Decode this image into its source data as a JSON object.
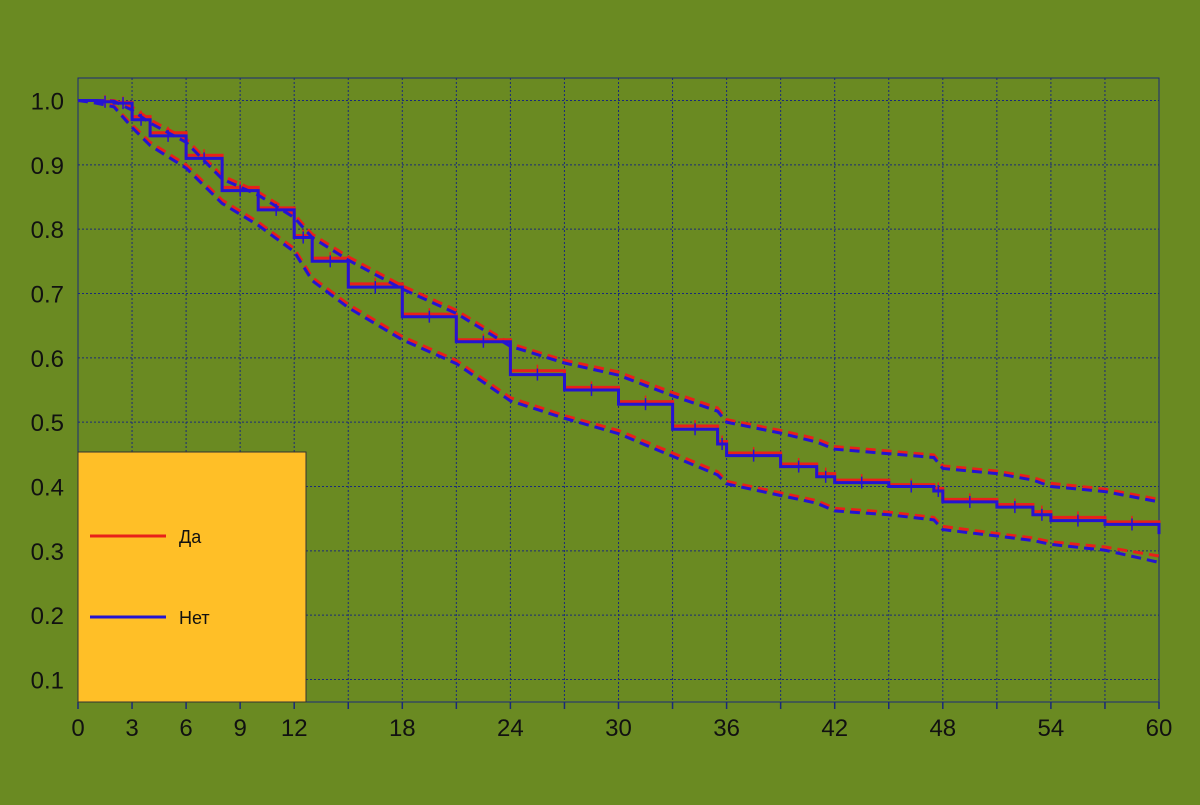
{
  "chart_data": {
    "type": "line",
    "title": "",
    "xlabel": "",
    "ylabel": "",
    "xlim": [
      0,
      60
    ],
    "ylim": [
      0.065,
      1.035
    ],
    "x_tick_labels": [
      0,
      3,
      6,
      9,
      12,
      18,
      24,
      30,
      36,
      42,
      48,
      54,
      60
    ],
    "x_minor_ticks": [
      15,
      21,
      27,
      33,
      39,
      45,
      51,
      57
    ],
    "x_grid": [
      3,
      6,
      9,
      12,
      15,
      18,
      21,
      24,
      27,
      30,
      33,
      36,
      39,
      42,
      45,
      48,
      51,
      54,
      57
    ],
    "y_tick_labels": [
      0.1,
      0.2,
      0.3,
      0.4,
      0.5,
      0.6,
      0.7,
      0.8,
      0.9,
      1.0
    ],
    "grid": true,
    "legend_position": "bottom-left",
    "colors": {
      "background": "#6a8a22",
      "grid": "#1a2a7a",
      "axis": "#1a2a7a",
      "legend_bg": "#ffbf27",
      "tick_text": "#111111"
    },
    "series": [
      {
        "name": "Да",
        "color": "#e8201a",
        "x": [
          0,
          1,
          2,
          3,
          4,
          6,
          8,
          10,
          12,
          13,
          15,
          18,
          21,
          24,
          27,
          30,
          33,
          35.5,
          36,
          39,
          41,
          42,
          45,
          47.5,
          48,
          51,
          53,
          54,
          57,
          60
        ],
        "y": [
          1.0,
          0.999,
          0.997,
          0.975,
          0.95,
          0.915,
          0.865,
          0.833,
          0.79,
          0.755,
          0.715,
          0.668,
          0.628,
          0.58,
          0.554,
          0.532,
          0.494,
          0.47,
          0.452,
          0.435,
          0.42,
          0.41,
          0.403,
          0.397,
          0.38,
          0.372,
          0.361,
          0.352,
          0.345,
          0.332
        ],
        "ci_upper": [
          1.0,
          1.0,
          1.0,
          0.99,
          0.97,
          0.94,
          0.883,
          0.858,
          0.823,
          0.792,
          0.757,
          0.712,
          0.674,
          0.622,
          0.596,
          0.578,
          0.546,
          0.522,
          0.504,
          0.487,
          0.474,
          0.462,
          0.455,
          0.449,
          0.432,
          0.424,
          0.414,
          0.405,
          0.396,
          0.38
        ],
        "ci_lower": [
          1.0,
          0.997,
          0.992,
          0.962,
          0.935,
          0.9,
          0.845,
          0.811,
          0.77,
          0.725,
          0.683,
          0.633,
          0.596,
          0.538,
          0.51,
          0.487,
          0.452,
          0.423,
          0.408,
          0.39,
          0.378,
          0.366,
          0.36,
          0.352,
          0.338,
          0.327,
          0.32,
          0.314,
          0.306,
          0.292
        ]
      },
      {
        "name": "Нет",
        "color": "#2414d2",
        "x": [
          0,
          1,
          2,
          3,
          4,
          6,
          8,
          10,
          12,
          13,
          15,
          18,
          21,
          24,
          27,
          30,
          33,
          35.5,
          36,
          39,
          41,
          42,
          45,
          47.5,
          48,
          51,
          53,
          54,
          57,
          60
        ],
        "y": [
          1.0,
          0.998,
          0.996,
          0.97,
          0.945,
          0.91,
          0.86,
          0.83,
          0.787,
          0.75,
          0.71,
          0.664,
          0.625,
          0.574,
          0.55,
          0.528,
          0.489,
          0.466,
          0.448,
          0.431,
          0.415,
          0.406,
          0.4,
          0.393,
          0.376,
          0.368,
          0.356,
          0.347,
          0.341,
          0.326
        ],
        "ci_upper": [
          1.0,
          1.0,
          0.999,
          0.985,
          0.965,
          0.935,
          0.878,
          0.853,
          0.818,
          0.787,
          0.752,
          0.707,
          0.669,
          0.618,
          0.592,
          0.573,
          0.541,
          0.517,
          0.5,
          0.483,
          0.469,
          0.458,
          0.451,
          0.445,
          0.428,
          0.42,
          0.41,
          0.4,
          0.392,
          0.376
        ],
        "ci_lower": [
          1.0,
          0.996,
          0.99,
          0.958,
          0.93,
          0.895,
          0.84,
          0.806,
          0.765,
          0.72,
          0.678,
          0.628,
          0.591,
          0.533,
          0.506,
          0.482,
          0.447,
          0.418,
          0.404,
          0.386,
          0.374,
          0.362,
          0.356,
          0.348,
          0.333,
          0.323,
          0.316,
          0.31,
          0.301,
          0.282
        ]
      }
    ]
  }
}
